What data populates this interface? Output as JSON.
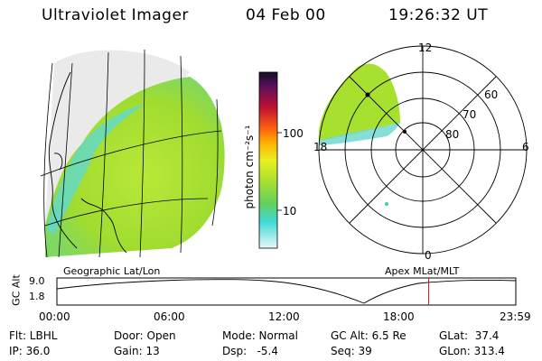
{
  "header": {
    "title": "Ultraviolet Imager",
    "date": "04 Feb 00",
    "time": "19:26:32 UT"
  },
  "colorbar": {
    "unit_label": "photon cm⁻²s⁻¹",
    "ticks": [
      "100",
      "10"
    ]
  },
  "panels": {
    "left_caption": "Geographic Lat/Lon",
    "right_caption": "Apex MLat/MLT"
  },
  "polar_plot": {
    "mlt_labels": {
      "top": "12",
      "left": "18",
      "right": "6",
      "bottom": "0"
    },
    "lat_labels": [
      "60",
      "70",
      "80"
    ]
  },
  "timeline": {
    "ylabel": "GC Alt",
    "yticks": [
      "9.0",
      "1.8"
    ],
    "xticks": [
      "00:00",
      "06:00",
      "12:00",
      "18:00",
      "23:59"
    ],
    "current_time_fraction": 0.81
  },
  "info": {
    "flt": "Flt: LBHL",
    "ip": "IP: 36.0",
    "door": "Door: Open",
    "gain": "Gain: 13",
    "mode": "Mode: Normal",
    "dsp": "Dsp:   -5.4",
    "gcalt": "GC Alt: 6.5 Re",
    "seq": "Seq: 39",
    "glat": "GLat:  37.4",
    "glon": "GLon: 313.4"
  },
  "colors": {
    "aurora_green": "#a8e030",
    "aurora_yellow": "#d8ee40",
    "aurora_cyan": "#60e0e0",
    "marker_red": "#cc2222"
  }
}
